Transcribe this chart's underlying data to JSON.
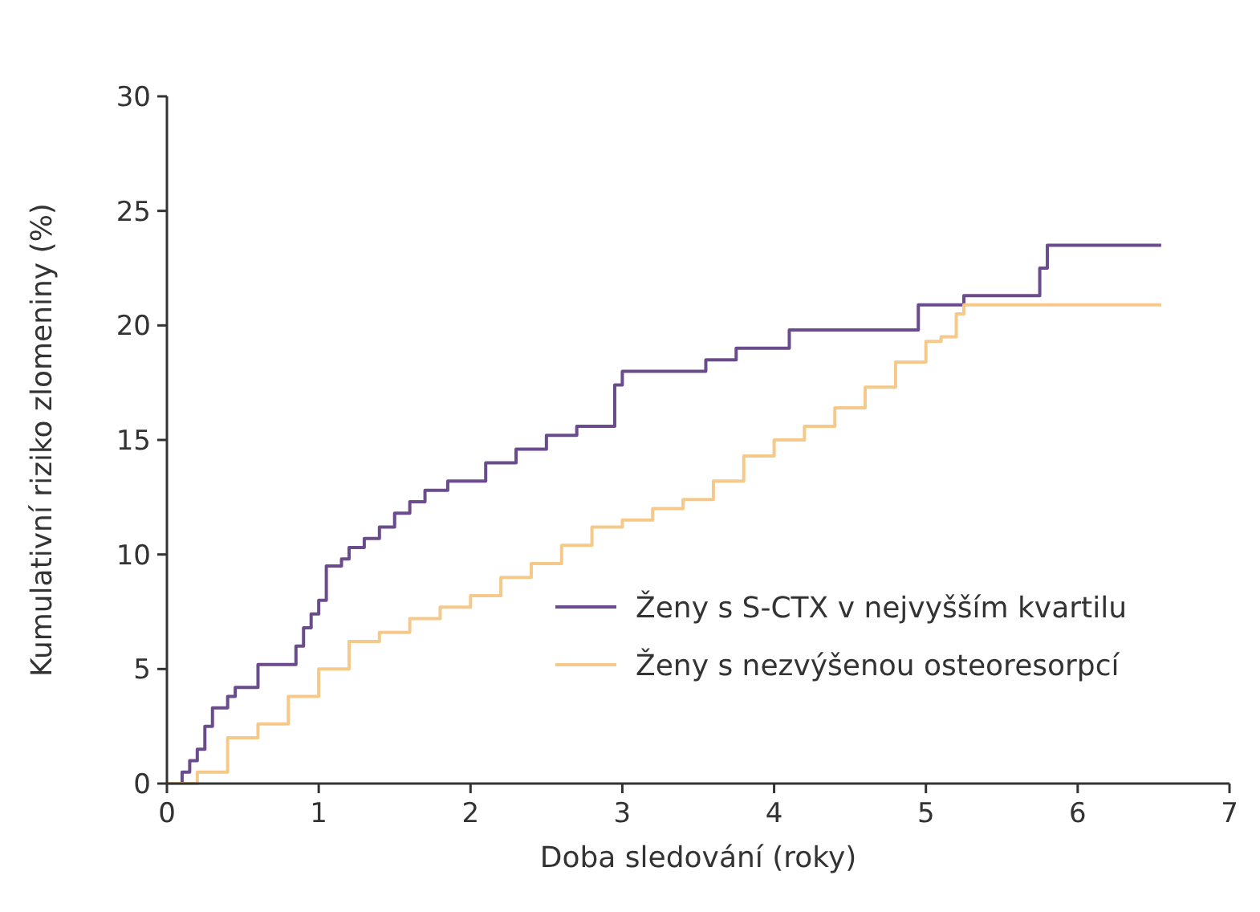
{
  "chart_data": {
    "type": "step",
    "xlabel": "Doba sledování (roky)",
    "ylabel": "Kumulativní riziko zlomeniny (%)",
    "xlim": [
      0,
      7
    ],
    "xticks": [
      0,
      1,
      2,
      3,
      4,
      5,
      6,
      7
    ],
    "ylim": [
      0,
      30
    ],
    "yticks": [
      0,
      5,
      10,
      15,
      20,
      25,
      30
    ],
    "grid": false,
    "legend": "bottom right",
    "series": [
      {
        "name": "Ženy s S-CTX v nejvyšším kvartilu",
        "color": "#6a4c8c",
        "x": [
          0,
          0.1,
          0.15,
          0.2,
          0.25,
          0.3,
          0.4,
          0.45,
          0.6,
          0.85,
          0.9,
          0.95,
          1.0,
          1.05,
          1.15,
          1.2,
          1.3,
          1.4,
          1.5,
          1.6,
          1.7,
          1.85,
          2.1,
          2.3,
          2.5,
          2.7,
          2.95,
          3.0,
          3.55,
          3.75,
          4.1,
          4.95,
          5.25,
          5.75,
          5.8,
          6.55
        ],
        "values": [
          0,
          0.5,
          1,
          1.5,
          2.5,
          3.3,
          3.8,
          4.2,
          5.2,
          6,
          6.8,
          7.4,
          8,
          9.5,
          9.8,
          10.3,
          10.7,
          11.2,
          11.8,
          12.3,
          12.8,
          13.2,
          14,
          14.6,
          15.2,
          15.6,
          17.4,
          18,
          18.5,
          19,
          19.8,
          20.9,
          21.3,
          22.5,
          23.5,
          23.5
        ]
      },
      {
        "name": "Ženy s nezvýšenou osteoresorpcí",
        "color": "#f5c98a",
        "x": [
          0,
          0.2,
          0.4,
          0.6,
          0.8,
          1.0,
          1.2,
          1.4,
          1.6,
          1.8,
          2.0,
          2.2,
          2.4,
          2.6,
          2.8,
          3.0,
          3.2,
          3.4,
          3.6,
          3.8,
          4.0,
          4.2,
          4.4,
          4.6,
          4.8,
          5.0,
          5.1,
          5.2,
          5.25,
          6.55
        ],
        "values": [
          0,
          0.5,
          2,
          2.6,
          3.8,
          5,
          6.2,
          6.6,
          7.2,
          7.7,
          8.2,
          9,
          9.6,
          10.4,
          11.2,
          11.5,
          12,
          12.4,
          13.2,
          14.3,
          15,
          15.6,
          16.4,
          17.3,
          18.4,
          19.3,
          19.5,
          20.5,
          20.9,
          20.9
        ]
      }
    ]
  }
}
